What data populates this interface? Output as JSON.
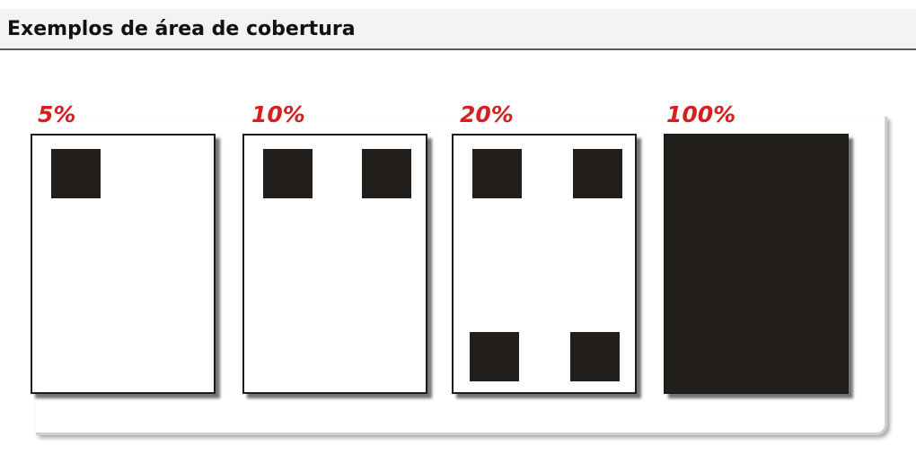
{
  "header": {
    "title": "Exemplos de área de cobertura"
  },
  "examples": [
    {
      "label": "5%",
      "coverage_percent": 5
    },
    {
      "label": "10%",
      "coverage_percent": 10
    },
    {
      "label": "20%",
      "coverage_percent": 20
    },
    {
      "label": "100%",
      "coverage_percent": 100
    }
  ],
  "colors": {
    "label_red": "#d61f1f",
    "ink": "#221e1b",
    "header_bg": "#f3f3f3"
  }
}
